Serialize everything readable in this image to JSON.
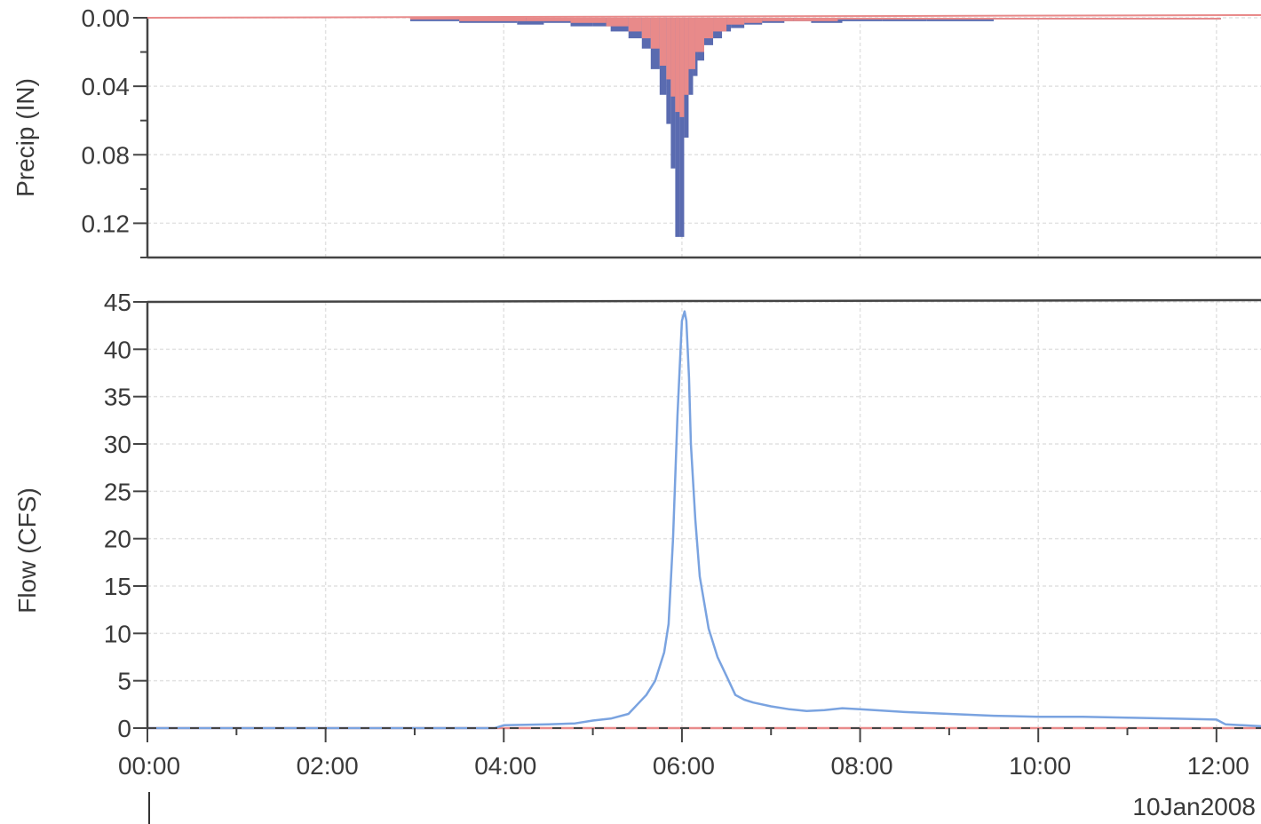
{
  "chart_data": [
    {
      "type": "bar",
      "panel": "precipitation",
      "ylabel": "Precip (IN)",
      "y_inverted": true,
      "ylim": [
        0,
        0.14
      ],
      "yticks": [
        0.0,
        0.04,
        0.08,
        0.12
      ],
      "ytick_labels": [
        "0.00",
        "0.04",
        "0.08",
        "0.12"
      ],
      "grid": true,
      "colors": {
        "total_precip": "#5a6bb0",
        "excess_precip": "#e88a8a"
      },
      "series": [
        {
          "role": "total",
          "color": "#5a6bb0",
          "x_hours": [
            3.0,
            4.0,
            4.3,
            4.6,
            4.9,
            5.1,
            5.3,
            5.5,
            5.6,
            5.7,
            5.8,
            5.85,
            5.9,
            5.95,
            6.0,
            6.05,
            6.1,
            6.15,
            6.2,
            6.3,
            6.4,
            6.5,
            6.6,
            6.8,
            7.0,
            7.3,
            7.6,
            8.0,
            8.5,
            9.0,
            10.0,
            11.0,
            12.0
          ],
          "values": [
            0.002,
            0.003,
            0.004,
            0.003,
            0.005,
            0.005,
            0.008,
            0.012,
            0.018,
            0.03,
            0.045,
            0.062,
            0.088,
            0.128,
            0.128,
            0.07,
            0.045,
            0.034,
            0.025,
            0.016,
            0.012,
            0.008,
            0.006,
            0.004,
            0.003,
            0.002,
            0.003,
            0.002,
            0.002,
            0.002,
            0.001,
            0.001,
            0.001
          ]
        },
        {
          "role": "excess",
          "color": "#e88a8a",
          "x_hours": [
            3.0,
            4.0,
            4.5,
            5.0,
            5.3,
            5.5,
            5.6,
            5.7,
            5.8,
            5.85,
            5.9,
            5.95,
            6.0,
            6.05,
            6.1,
            6.2,
            6.3,
            6.4,
            6.6,
            6.8,
            7.0,
            7.5,
            8.0,
            9.0,
            10.0,
            12.0
          ],
          "values": [
            0.001,
            0.002,
            0.002,
            0.003,
            0.005,
            0.008,
            0.012,
            0.018,
            0.028,
            0.036,
            0.046,
            0.055,
            0.058,
            0.045,
            0.03,
            0.02,
            0.012,
            0.008,
            0.004,
            0.003,
            0.002,
            0.002,
            0.001,
            0.001,
            0.001,
            0.001
          ]
        }
      ]
    },
    {
      "type": "line",
      "panel": "flow",
      "ylabel": "Flow (CFS)",
      "ylim": [
        0,
        45
      ],
      "yticks": [
        0,
        5,
        10,
        15,
        20,
        25,
        30,
        35,
        40,
        45
      ],
      "xlim_hours": [
        0,
        12.5
      ],
      "xticks_hours": [
        0,
        2,
        4,
        6,
        8,
        10,
        12
      ],
      "xtick_labels": [
        "00:00",
        "02:00",
        "04:00",
        "06:00",
        "08:00",
        "10:00",
        "12:00"
      ],
      "date_label": "10Jan2008",
      "grid": true,
      "series": [
        {
          "role": "outflow",
          "color": "#7aa3e0",
          "x_hours": [
            0,
            3.9,
            4.0,
            4.5,
            4.8,
            5.0,
            5.2,
            5.4,
            5.5,
            5.6,
            5.7,
            5.8,
            5.85,
            5.9,
            5.95,
            6.0,
            6.03,
            6.05,
            6.08,
            6.1,
            6.15,
            6.2,
            6.3,
            6.4,
            6.5,
            6.6,
            6.7,
            6.8,
            7.0,
            7.2,
            7.4,
            7.6,
            7.8,
            8.0,
            8.5,
            9.0,
            9.5,
            10.0,
            10.5,
            11.0,
            11.5,
            12.0,
            12.1,
            12.5
          ],
          "values": [
            0,
            0,
            0.3,
            0.4,
            0.5,
            0.8,
            1.0,
            1.5,
            2.5,
            3.5,
            5.0,
            8.0,
            11.0,
            20.0,
            33.0,
            43.0,
            44.0,
            43.0,
            37.0,
            30.0,
            22.0,
            16.0,
            10.5,
            7.5,
            5.5,
            3.5,
            3.0,
            2.7,
            2.3,
            2.0,
            1.8,
            1.9,
            2.1,
            2.0,
            1.7,
            1.5,
            1.3,
            1.2,
            1.2,
            1.1,
            1.0,
            0.9,
            0.4,
            0.2
          ]
        },
        {
          "role": "observed-near-zero",
          "color": "#e88a8a",
          "x_hours": [
            0,
            12.5
          ],
          "values": [
            0,
            0
          ]
        }
      ]
    }
  ]
}
